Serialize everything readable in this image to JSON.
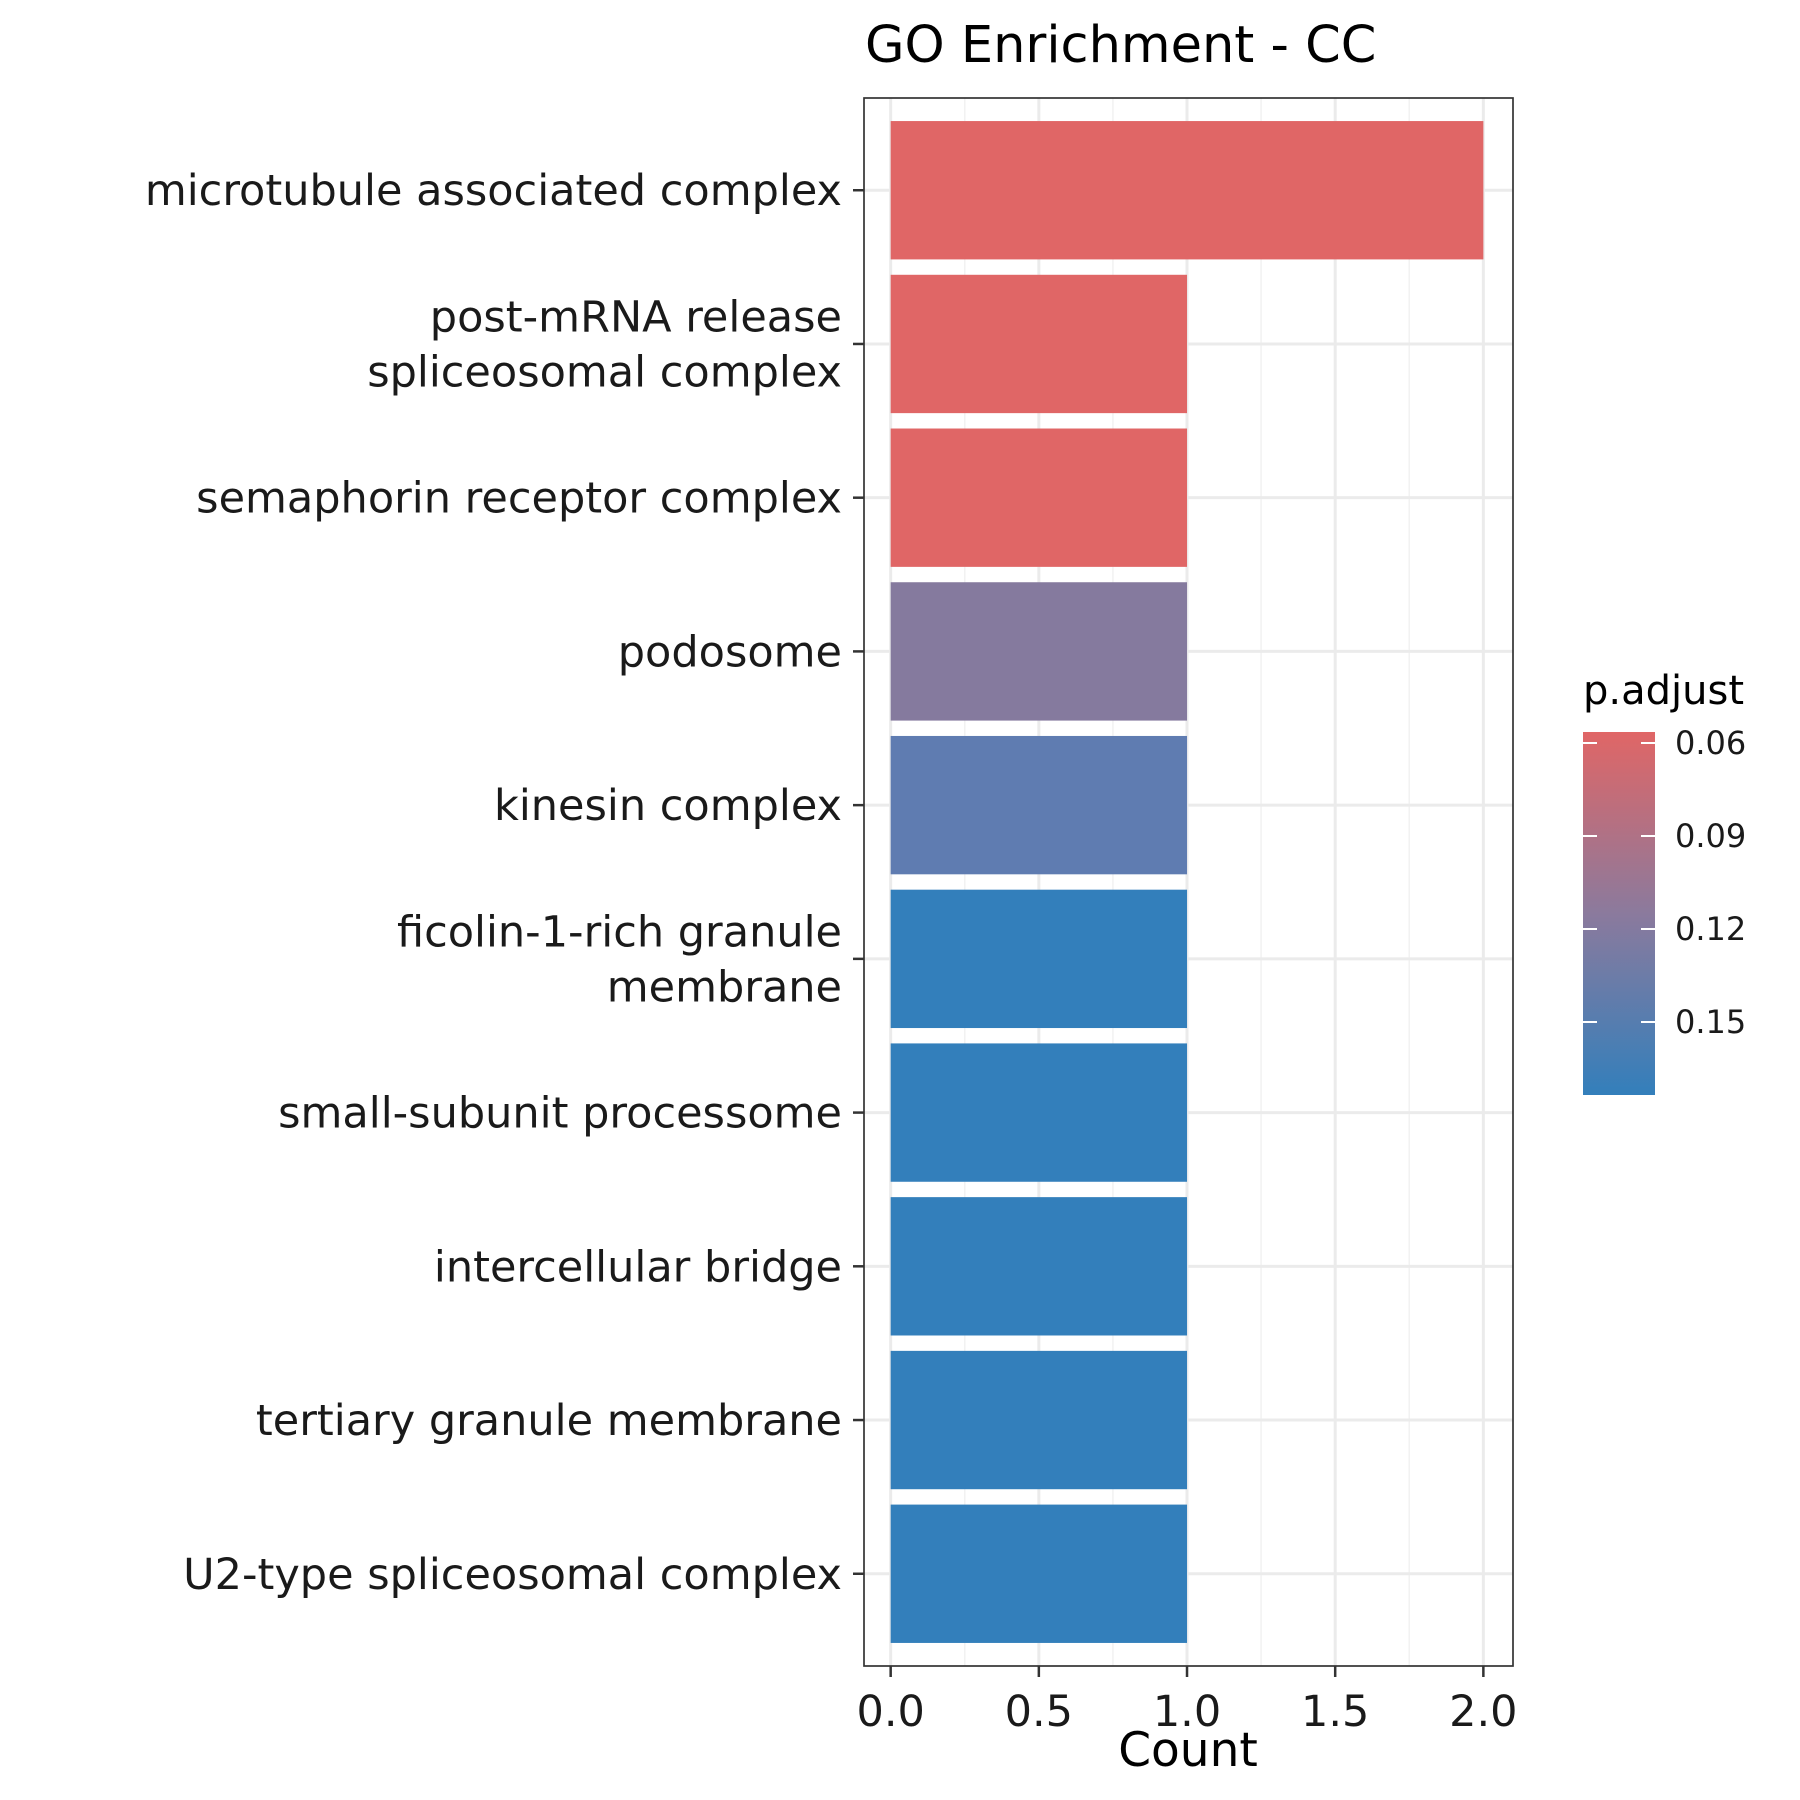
{
  "chart_data": {
    "type": "bar",
    "orientation": "horizontal",
    "title": "GO Enrichment - CC",
    "xlabel": "Count",
    "ylabel": "",
    "xlim": [
      -0.09,
      2.1
    ],
    "xticks": [
      "0.0",
      "0.5",
      "1.0",
      "1.5",
      "2.0"
    ],
    "grid": true,
    "categories": [
      [
        "microtubule associated complex"
      ],
      [
        "post-mRNA release",
        "spliceosomal complex"
      ],
      [
        "semaphorin receptor complex"
      ],
      [
        "podosome"
      ],
      [
        "kinesin complex"
      ],
      [
        "ficolin-1-rich granule",
        "membrane"
      ],
      [
        "small-subunit processome"
      ],
      [
        "intercellular bridge"
      ],
      [
        "tertiary granule membrane"
      ],
      [
        "U2-type spliceosomal complex"
      ]
    ],
    "values": [
      2,
      1,
      1,
      1,
      1,
      1,
      1,
      1,
      1,
      1
    ],
    "colors": [
      "#E06666",
      "#E06666",
      "#E06666",
      "#857A9E",
      "#5F7CB1",
      "#337FBB",
      "#337FBB",
      "#337FBB",
      "#337FBB",
      "#337FBB"
    ],
    "legend": {
      "title": "p.adjust",
      "position": "right",
      "ticks": [
        "0.06",
        "0.09",
        "0.12",
        "0.15"
      ],
      "color_high_value": "#337FBB",
      "color_low_value": "#E06666"
    }
  }
}
